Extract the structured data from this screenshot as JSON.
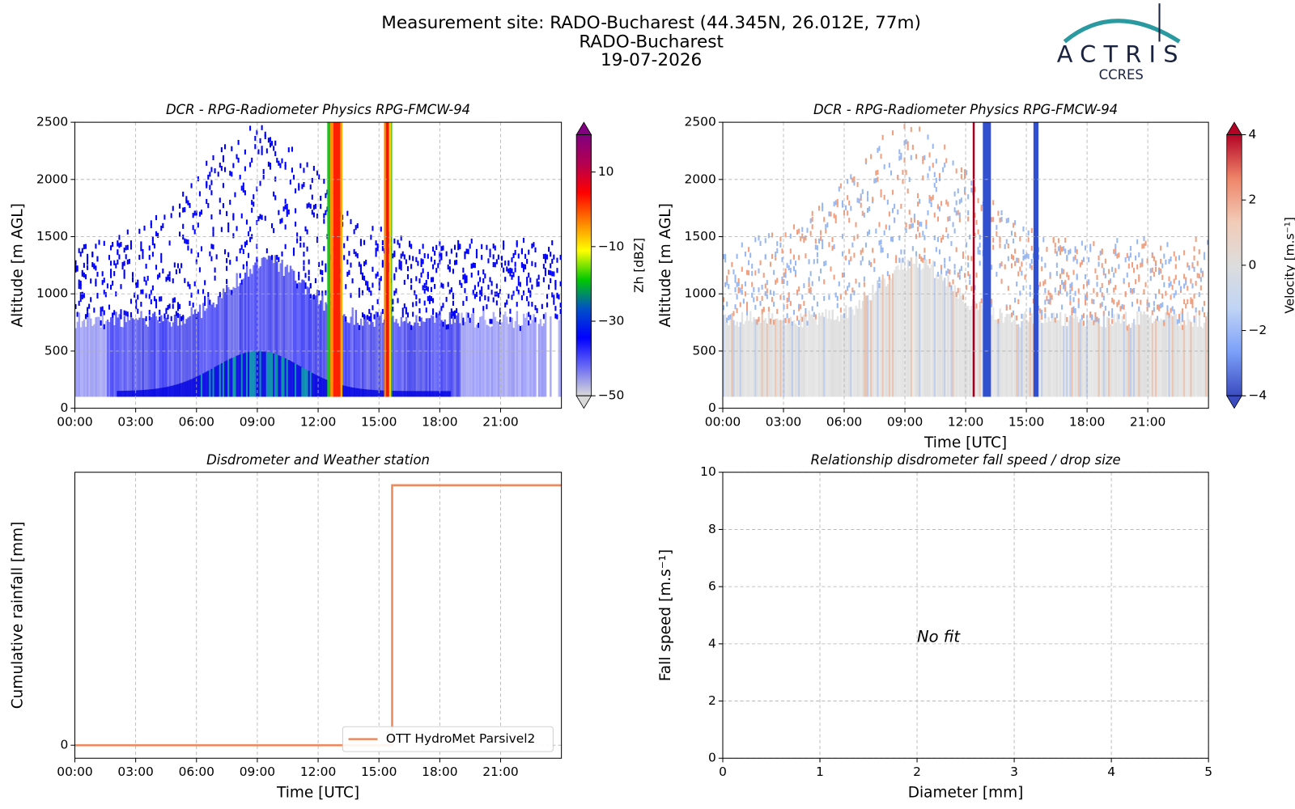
{
  "header": {
    "title": [
      "Measurement site: RADO-Bucharest (44.345N, 26.012E, 77m)",
      "RADO-Bucharest",
      "19-07-2026"
    ],
    "logo": "ACTRIS",
    "logo_sub": "CCRES"
  },
  "chart_data": [
    {
      "type": "heatmap",
      "title": "DCR - RPG-Radiometer Physics RPG-FMCW-94",
      "ylabel": "Altitude [m AGL]",
      "xlim": [
        0,
        24
      ],
      "xticks": [
        {
          "value": 0,
          "label": "00:00"
        },
        {
          "value": 3,
          "label": "03:00"
        },
        {
          "value": 6,
          "label": "06:00"
        },
        {
          "value": 9,
          "label": "09:00"
        },
        {
          "value": 12,
          "label": "12:00"
        },
        {
          "value": 15,
          "label": "15:00"
        },
        {
          "value": 18,
          "label": "18:00"
        },
        {
          "value": 21,
          "label": "21:00"
        }
      ],
      "ylim": [
        0,
        2500
      ],
      "yticks": [
        0,
        500,
        1000,
        1500,
        2000,
        2500
      ],
      "grid": true,
      "colorbar": {
        "label": "Zh [dBZ]",
        "clim": [
          -50,
          20
        ],
        "ticks": [
          {
            "value": -50,
            "label": "−50"
          },
          {
            "value": -30,
            "label": "−30"
          },
          {
            "value": -10,
            "label": "−10"
          },
          10
        ],
        "colors": [
          "#d9d9d9",
          "#6a6af5",
          "#0000ff",
          "#0050c8",
          "#00c800",
          "#ffff00",
          "#ff8000",
          "#ff0000",
          "#b40050",
          "#800080"
        ]
      }
    },
    {
      "type": "heatmap",
      "title": "DCR - RPG-Radiometer Physics RPG-FMCW-94",
      "ylabel": "Altitude [m AGL]",
      "xlabel": "Time [UTC]",
      "xlim": [
        0,
        24
      ],
      "xticks": [
        {
          "value": 0,
          "label": "00:00"
        },
        {
          "value": 3,
          "label": "03:00"
        },
        {
          "value": 6,
          "label": "06:00"
        },
        {
          "value": 9,
          "label": "09:00"
        },
        {
          "value": 12,
          "label": "12:00"
        },
        {
          "value": 15,
          "label": "15:00"
        },
        {
          "value": 18,
          "label": "18:00"
        },
        {
          "value": 21,
          "label": "21:00"
        }
      ],
      "ylim": [
        0,
        2500
      ],
      "yticks": [
        0,
        500,
        1000,
        1500,
        2000,
        2500
      ],
      "grid": true,
      "colorbar": {
        "label": "Velocity [m.s⁻¹]",
        "clim": [
          -4,
          4
        ],
        "ticks": [
          {
            "value": -4,
            "label": "−4"
          },
          {
            "value": -2,
            "label": "−2"
          },
          0,
          2,
          4
        ],
        "colors": [
          "#3b4cc0",
          "#7b9ff9",
          "#c0d4f5",
          "#dddddd",
          "#f2cbb7",
          "#ee8468",
          "#b40426"
        ]
      }
    },
    {
      "type": "line",
      "title": "Disdrometer and Weather station",
      "ylabel": "Cumulative rainfall [mm]",
      "xlabel": "Time [UTC]",
      "xlim": [
        0,
        24
      ],
      "xticks": [
        {
          "value": 0,
          "label": "00:00"
        },
        {
          "value": 3,
          "label": "03:00"
        },
        {
          "value": 6,
          "label": "06:00"
        },
        {
          "value": 9,
          "label": "09:00"
        },
        {
          "value": 12,
          "label": "12:00"
        },
        {
          "value": 15,
          "label": "15:00"
        },
        {
          "value": 18,
          "label": "18:00"
        },
        {
          "value": 21,
          "label": "21:00"
        }
      ],
      "ylim": [
        -0.05,
        1.05
      ],
      "yticks": [
        0
      ],
      "grid": true,
      "legend": "lower right",
      "x": [
        0,
        15.65,
        15.65,
        24
      ],
      "series": [
        {
          "name": "OTT HydroMet Parsivel2",
          "color": "#eb8a5f",
          "values": [
            0,
            0,
            1,
            1
          ]
        }
      ]
    },
    {
      "type": "scatter",
      "title": "Relationship disdrometer fall speed / drop size",
      "ylabel": "Fall speed [m.s⁻¹]",
      "xlabel": "Diameter [mm]",
      "xlim": [
        0,
        5
      ],
      "xticks": [
        0,
        1,
        2,
        3,
        4,
        5
      ],
      "ylim": [
        0,
        10
      ],
      "yticks": [
        0,
        2,
        4,
        6,
        8,
        10
      ],
      "grid": true,
      "annotation": "No fit",
      "series": []
    }
  ]
}
